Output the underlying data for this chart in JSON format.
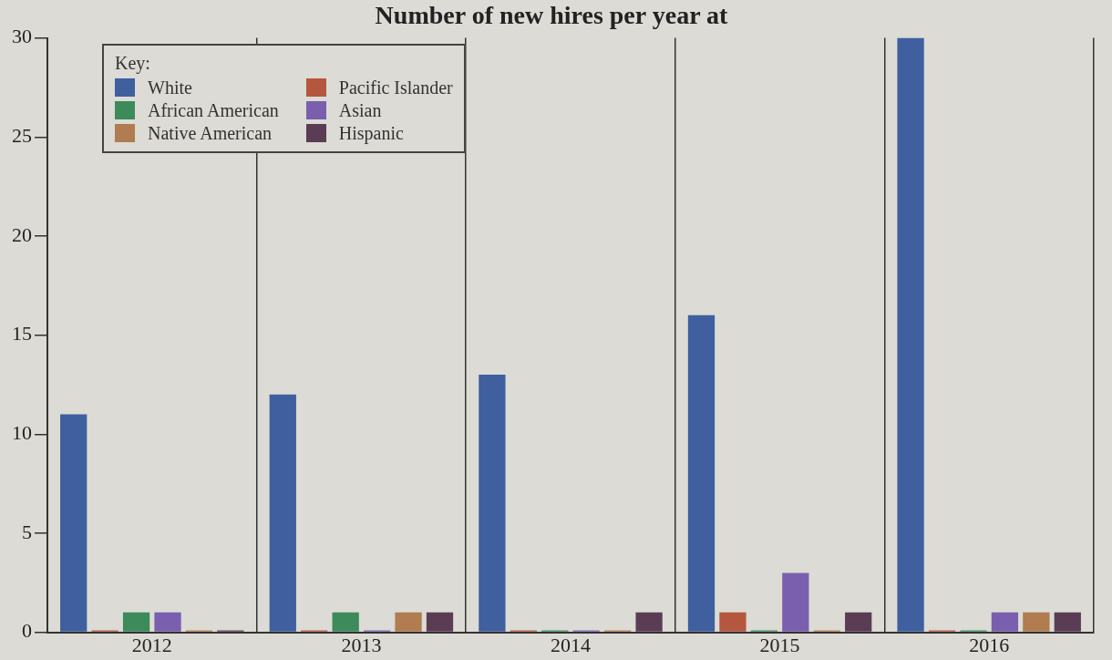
{
  "chart_data": {
    "type": "bar",
    "title": "Number of new hires per year at",
    "legend_title": "Key:",
    "categories": [
      "2012",
      "2013",
      "2014",
      "2015",
      "2016"
    ],
    "series": [
      {
        "name": "White",
        "color": "#3f5f9e",
        "values": [
          11,
          12,
          13,
          16,
          30
        ]
      },
      {
        "name": "Pacific Islander",
        "color": "#b5573f",
        "values": [
          0.1,
          0.1,
          0.1,
          1,
          0.1
        ]
      },
      {
        "name": "African American",
        "color": "#3d8a5a",
        "values": [
          1,
          1,
          0.1,
          0.1,
          0.1
        ]
      },
      {
        "name": "Asian",
        "color": "#7a5fae",
        "values": [
          1,
          0.1,
          0.1,
          3,
          1
        ]
      },
      {
        "name": "Native American",
        "color": "#b07c50",
        "values": [
          0.1,
          1,
          0.1,
          0.1,
          1
        ]
      },
      {
        "name": "Hispanic",
        "color": "#5a3d55",
        "values": [
          0.1,
          1,
          1,
          1,
          1
        ]
      }
    ],
    "ylim": [
      0,
      30
    ],
    "yticks": [
      0,
      5,
      10,
      15,
      20,
      25,
      30
    ],
    "grid": "x",
    "legend": "top left"
  }
}
